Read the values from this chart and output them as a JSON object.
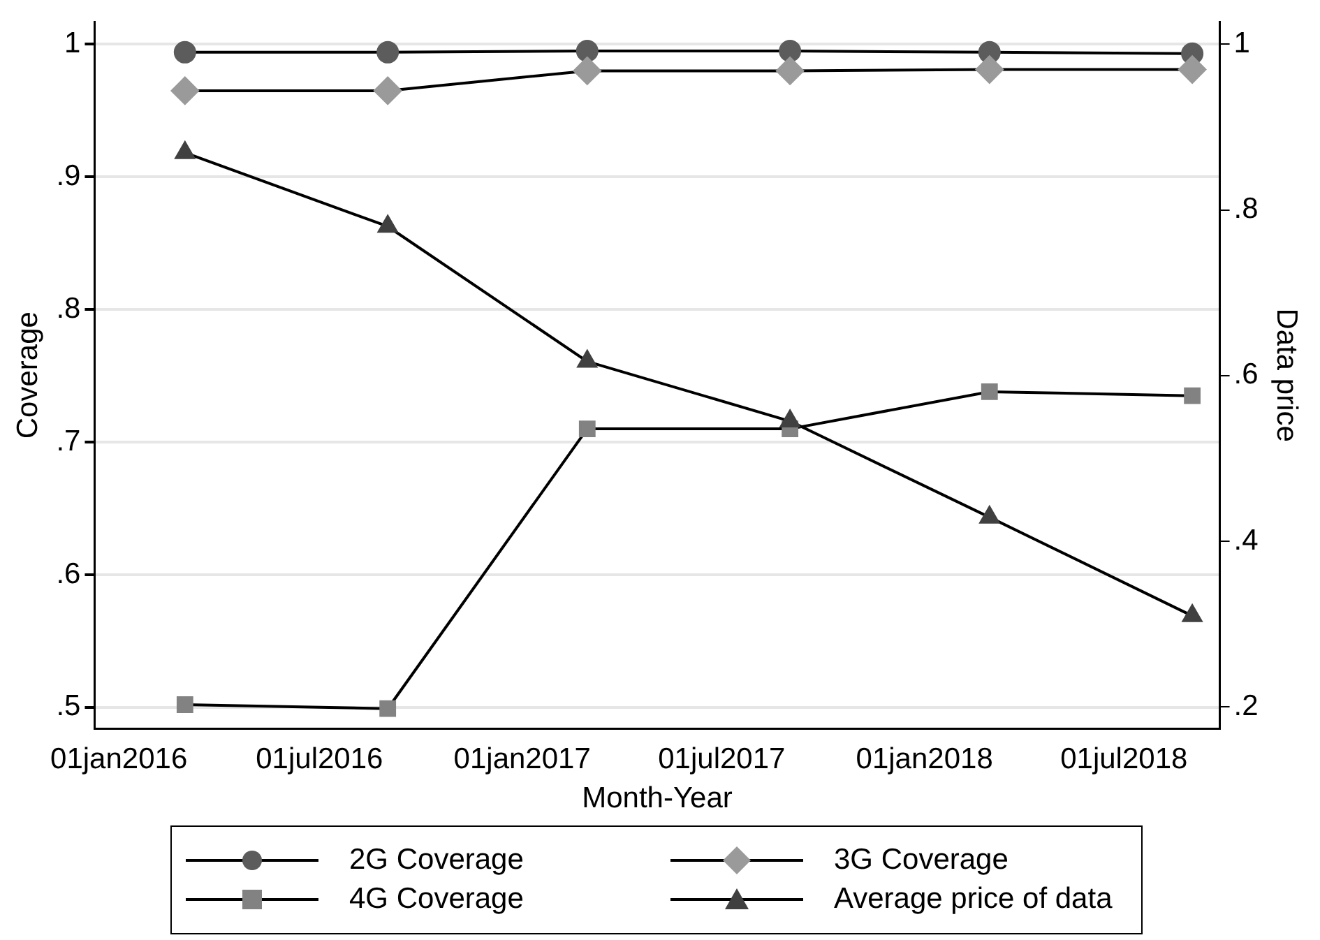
{
  "chart_data": {
    "type": "line",
    "xlabel": "Month-Year",
    "ylabel": "Coverage",
    "y2label": "Data price",
    "x": [
      "2016-03-01",
      "2016-09-01",
      "2017-03-01",
      "2017-09-01",
      "2018-03-01",
      "2018-09-01"
    ],
    "xlim": [
      "2015-12-10",
      "2018-09-26"
    ],
    "xticks": [
      {
        "value": "2016-01-01",
        "label": "01jan2016"
      },
      {
        "value": "2016-07-01",
        "label": "01jul2016"
      },
      {
        "value": "2017-01-01",
        "label": "01jan2017"
      },
      {
        "value": "2017-07-01",
        "label": "01jul2017"
      },
      {
        "value": "2018-01-01",
        "label": "01jan2018"
      },
      {
        "value": "2018-07-01",
        "label": "01jul2018"
      }
    ],
    "ylim": [
      0.484,
      1.017
    ],
    "yticks": [
      {
        "value": 0.5,
        "label": ".5"
      },
      {
        "value": 0.6,
        "label": ".6"
      },
      {
        "value": 0.7,
        "label": ".7"
      },
      {
        "value": 0.8,
        "label": ".8"
      },
      {
        "value": 0.9,
        "label": ".9"
      },
      1
    ],
    "y2lim": [
      0.174,
      1.027
    ],
    "y2ticks": [
      {
        "value": 0.2,
        "label": ".2"
      },
      {
        "value": 0.4,
        "label": ".4"
      },
      {
        "value": 0.6,
        "label": ".6"
      },
      {
        "value": 0.8,
        "label": ".8"
      },
      1
    ],
    "grid": "y",
    "legend": "bottom",
    "line_style": "solid",
    "series": [
      {
        "name": "2G Coverage",
        "color": "#5c5c5c",
        "marker": "circle",
        "values": [
          0.994,
          0.994,
          0.995,
          0.995,
          0.994,
          0.993
        ]
      },
      {
        "name": "3G Coverage",
        "color": "#9a9a9a",
        "marker": "diamond",
        "values": [
          0.965,
          0.965,
          0.98,
          0.98,
          0.981,
          0.981
        ]
      },
      {
        "name": "4G Coverage",
        "color": "#828282",
        "marker": "square",
        "values": [
          0.502,
          0.499,
          0.71,
          0.71,
          0.738,
          0.735
        ]
      },
      {
        "name": "Average price of data",
        "color": "#404040",
        "marker": "triangle",
        "axis": "y2",
        "values": [
          0.869,
          0.78,
          0.617,
          0.545,
          0.429,
          0.31
        ]
      }
    ]
  }
}
